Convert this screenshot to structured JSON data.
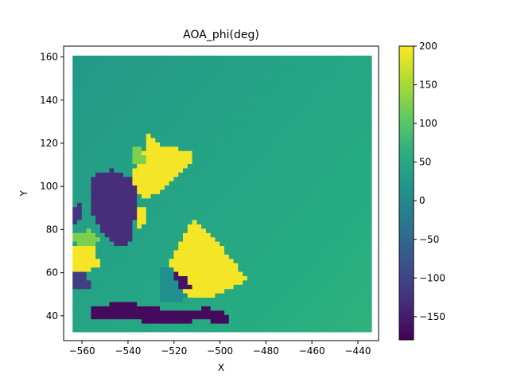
{
  "chart_data": {
    "type": "heatmap",
    "title": "AOA_phi(deg)",
    "xlabel": "X",
    "ylabel": "Y",
    "xlim": [
      -568,
      -431
    ],
    "ylim": [
      28.5,
      165
    ],
    "x_ticks": [
      -560,
      -540,
      -520,
      -500,
      -480,
      -460,
      -440
    ],
    "x_tick_labels": [
      "−560",
      "−540",
      "−520",
      "−500",
      "−480",
      "−460",
      "−440"
    ],
    "y_ticks": [
      40,
      60,
      80,
      100,
      120,
      140,
      160
    ],
    "y_tick_labels": [
      "40",
      "60",
      "80",
      "100",
      "120",
      "140",
      "160"
    ],
    "grid": false,
    "colormap": "viridis",
    "colorbar": {
      "vmin": -180,
      "vmax": 200,
      "ticks": [
        -150,
        -100,
        -50,
        0,
        50,
        100,
        150,
        200
      ],
      "tick_labels": [
        "−150",
        "−100",
        "−50",
        "0",
        "50",
        "100",
        "150",
        "200"
      ]
    },
    "grid_extent": {
      "x": [
        -563,
        -435
      ],
      "y": [
        33.5,
        160
      ],
      "step": 2
    },
    "background_field": {
      "description": "smooth ramp over the whole grid",
      "value_at_upper_left": 25,
      "value_at_lower_right": 65
    },
    "regions": [
      {
        "label": "yellow block upper",
        "value": 195,
        "polygon": [
          [
            -532,
            125
          ],
          [
            -525,
            119
          ],
          [
            -516,
            117
          ],
          [
            -512,
            117
          ],
          [
            -512,
            111
          ],
          [
            -518,
            106
          ],
          [
            -527,
            97
          ],
          [
            -531,
            94
          ],
          [
            -536,
            97
          ],
          [
            -538,
            106
          ],
          [
            -536,
            111
          ],
          [
            -532,
            118
          ]
        ]
      },
      {
        "label": "green fringe upper",
        "value": 125,
        "polygon": [
          [
            -538,
            117
          ],
          [
            -534,
            120
          ],
          [
            -532,
            111
          ],
          [
            -536,
            109
          ],
          [
            -538,
            112
          ]
        ]
      },
      {
        "label": "yellow block mid",
        "value": 195,
        "polygon": [
          [
            -537,
            92
          ],
          [
            -533,
            90
          ],
          [
            -532,
            84
          ],
          [
            -535,
            81
          ],
          [
            -538,
            85
          ]
        ]
      },
      {
        "label": "purple block left",
        "value": -130,
        "polygon": [
          [
            -555,
            105
          ],
          [
            -546,
            108
          ],
          [
            -538,
            103
          ],
          [
            -535,
            95
          ],
          [
            -537,
            85
          ],
          [
            -538,
            74
          ],
          [
            -543,
            72
          ],
          [
            -551,
            78
          ],
          [
            -556,
            88
          ],
          [
            -557,
            98
          ]
        ]
      },
      {
        "label": "purple strip far left",
        "value": -120,
        "polygon": [
          [
            -563,
            91
          ],
          [
            -561,
            93
          ],
          [
            -560,
            85
          ],
          [
            -563,
            82
          ]
        ]
      },
      {
        "label": "yellow block left",
        "value": 195,
        "polygon": [
          [
            -563,
            72
          ],
          [
            -560,
            75
          ],
          [
            -555,
            72
          ],
          [
            -552,
            64
          ],
          [
            -557,
            60
          ],
          [
            -563,
            60
          ]
        ]
      },
      {
        "label": "green fringe left",
        "value": 125,
        "polygon": [
          [
            -563,
            78
          ],
          [
            -556,
            80
          ],
          [
            -552,
            75
          ],
          [
            -556,
            72
          ],
          [
            -563,
            74
          ]
        ]
      },
      {
        "label": "purple patch left low",
        "value": -110,
        "polygon": [
          [
            -563,
            60
          ],
          [
            -558,
            60
          ],
          [
            -556,
            52
          ],
          [
            -563,
            52
          ]
        ]
      },
      {
        "label": "yellow block lower",
        "value": 195,
        "polygon": [
          [
            -512,
            85
          ],
          [
            -506,
            80
          ],
          [
            -499,
            72
          ],
          [
            -492,
            63
          ],
          [
            -488,
            56
          ],
          [
            -494,
            53
          ],
          [
            -501,
            50
          ],
          [
            -507,
            48
          ],
          [
            -515,
            50
          ],
          [
            -520,
            55
          ],
          [
            -522,
            64
          ],
          [
            -519,
            71
          ],
          [
            -515,
            78
          ]
        ]
      },
      {
        "label": "teal band lower",
        "value": 10,
        "polygon": [
          [
            -525,
            62
          ],
          [
            -520,
            63
          ],
          [
            -514,
            48
          ],
          [
            -520,
            46
          ],
          [
            -527,
            48
          ]
        ]
      },
      {
        "label": "purple bottom strip",
        "value": -170,
        "polygon": [
          [
            -556,
            45
          ],
          [
            -538,
            46
          ],
          [
            -528,
            44
          ],
          [
            -520,
            42
          ],
          [
            -505,
            44
          ],
          [
            -495,
            40
          ],
          [
            -496,
            37
          ],
          [
            -510,
            38
          ],
          [
            -520,
            36
          ],
          [
            -538,
            38
          ],
          [
            -555,
            38
          ]
        ]
      },
      {
        "label": "dark patch center",
        "value": -160,
        "polygon": [
          [
            -520,
            60
          ],
          [
            -514,
            58
          ],
          [
            -512,
            52
          ],
          [
            -518,
            52
          ]
        ]
      }
    ]
  }
}
